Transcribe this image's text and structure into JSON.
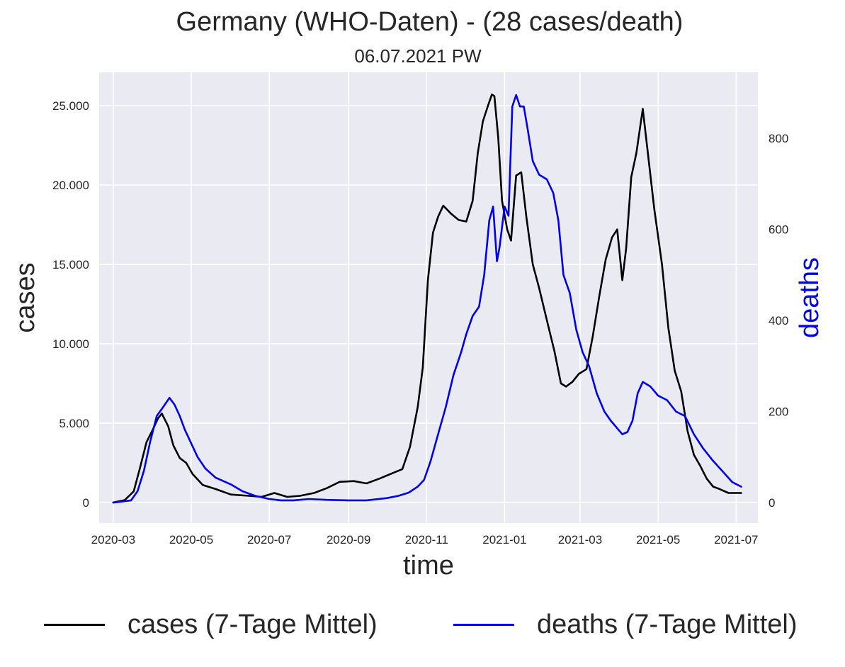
{
  "chart_data": {
    "type": "line",
    "title": "Germany (WHO-Daten) - (28 cases/death)",
    "subtitle": "06.07.2021 PW",
    "xlabel": "time",
    "ylabel_left": "cases",
    "ylabel_right": "deaths",
    "x_tick_labels": [
      "2020-03",
      "2020-05",
      "2020-07",
      "2020-09",
      "2020-11",
      "2021-01",
      "2021-03",
      "2021-05",
      "2021-07"
    ],
    "y_left_tick_labels": [
      "0",
      "5.000",
      "10.000",
      "15.000",
      "20.000",
      "25.000"
    ],
    "y_left_ticks": [
      0,
      5000,
      10000,
      15000,
      20000,
      25000
    ],
    "y_right_tick_labels": [
      "0",
      "200",
      "400",
      "600",
      "800"
    ],
    "y_right_ticks": [
      0,
      200,
      400,
      600,
      800
    ],
    "x_range": [
      "2020-02-19",
      "2021-07-18"
    ],
    "y_left_range": [
      -1300,
      27100
    ],
    "y_right_range": [
      -45,
      945
    ],
    "grid": true,
    "legend_placement": "bottom",
    "series": [
      {
        "name": "cases (7-Tage Mittel)",
        "axis": "left",
        "color": "#000000",
        "x": [
          "2020-03-01",
          "2020-03-10",
          "2020-03-17",
          "2020-03-22",
          "2020-03-27",
          "2020-04-01",
          "2020-04-05",
          "2020-04-08",
          "2020-04-13",
          "2020-04-17",
          "2020-04-22",
          "2020-04-27",
          "2020-05-02",
          "2020-05-10",
          "2020-05-20",
          "2020-06-01",
          "2020-06-15",
          "2020-06-25",
          "2020-07-05",
          "2020-07-15",
          "2020-07-25",
          "2020-08-05",
          "2020-08-15",
          "2020-08-25",
          "2020-09-05",
          "2020-09-15",
          "2020-09-25",
          "2020-10-01",
          "2020-10-07",
          "2020-10-13",
          "2020-10-19",
          "2020-10-25",
          "2020-10-29",
          "2020-11-02",
          "2020-11-06",
          "2020-11-10",
          "2020-11-14",
          "2020-11-20",
          "2020-11-26",
          "2020-12-02",
          "2020-12-07",
          "2020-12-11",
          "2020-12-15",
          "2020-12-19",
          "2020-12-22",
          "2020-12-24",
          "2020-12-27",
          "2020-12-30",
          "2021-01-03",
          "2021-01-06",
          "2021-01-10",
          "2021-01-14",
          "2021-01-18",
          "2021-01-23",
          "2021-01-28",
          "2021-02-03",
          "2021-02-09",
          "2021-02-14",
          "2021-02-18",
          "2021-02-23",
          "2021-02-28",
          "2021-03-06",
          "2021-03-11",
          "2021-03-16",
          "2021-03-21",
          "2021-03-26",
          "2021-03-30",
          "2021-04-03",
          "2021-04-06",
          "2021-04-10",
          "2021-04-14",
          "2021-04-19",
          "2021-04-23",
          "2021-04-28",
          "2021-05-04",
          "2021-05-09",
          "2021-05-14",
          "2021-05-19",
          "2021-05-24",
          "2021-05-29",
          "2021-06-03",
          "2021-06-08",
          "2021-06-13",
          "2021-06-18",
          "2021-06-25",
          "2021-07-05"
        ],
        "values": [
          0,
          150,
          700,
          2200,
          3800,
          4600,
          5300,
          5600,
          4800,
          3600,
          2800,
          2500,
          1800,
          1100,
          850,
          500,
          420,
          350,
          600,
          350,
          420,
          600,
          900,
          1300,
          1350,
          1200,
          1500,
          1700,
          1900,
          2100,
          3500,
          6000,
          8500,
          14000,
          17000,
          18000,
          18700,
          18200,
          17800,
          17700,
          19000,
          22000,
          24000,
          25000,
          25700,
          25600,
          23000,
          19000,
          17200,
          16500,
          20600,
          20800,
          18000,
          15000,
          13500,
          11500,
          9500,
          7500,
          7300,
          7600,
          8100,
          8400,
          10500,
          13000,
          15300,
          16700,
          17200,
          14000,
          16000,
          20500,
          22000,
          24800,
          22000,
          18500,
          15000,
          11000,
          8300,
          7000,
          4500,
          3000,
          2300,
          1500,
          1000,
          850,
          600,
          600
        ]
      },
      {
        "name": "deaths (7-Tage Mittel)",
        "axis": "right",
        "color": "#0000ee",
        "x": [
          "2020-03-01",
          "2020-03-15",
          "2020-03-20",
          "2020-03-25",
          "2020-03-30",
          "2020-04-04",
          "2020-04-09",
          "2020-04-14",
          "2020-04-18",
          "2020-04-22",
          "2020-04-26",
          "2020-05-01",
          "2020-05-06",
          "2020-05-12",
          "2020-05-20",
          "2020-06-01",
          "2020-06-10",
          "2020-06-20",
          "2020-07-01",
          "2020-07-10",
          "2020-07-20",
          "2020-08-01",
          "2020-08-15",
          "2020-09-01",
          "2020-09-15",
          "2020-10-01",
          "2020-10-10",
          "2020-10-18",
          "2020-10-25",
          "2020-10-30",
          "2020-11-04",
          "2020-11-10",
          "2020-11-16",
          "2020-11-22",
          "2020-11-28",
          "2020-12-02",
          "2020-12-07",
          "2020-12-12",
          "2020-12-16",
          "2020-12-20",
          "2020-12-23",
          "2020-12-26",
          "2020-12-28",
          "2021-01-01",
          "2021-01-04",
          "2021-01-07",
          "2021-01-10",
          "2021-01-13",
          "2021-01-16",
          "2021-01-19",
          "2021-01-23",
          "2021-01-28",
          "2021-02-03",
          "2021-02-08",
          "2021-02-12",
          "2021-02-16",
          "2021-02-21",
          "2021-02-26",
          "2021-03-03",
          "2021-03-08",
          "2021-03-14",
          "2021-03-20",
          "2021-03-25",
          "2021-03-31",
          "2021-04-03",
          "2021-04-07",
          "2021-04-11",
          "2021-04-15",
          "2021-04-19",
          "2021-04-25",
          "2021-05-01",
          "2021-05-08",
          "2021-05-15",
          "2021-05-22",
          "2021-05-29",
          "2021-06-05",
          "2021-06-12",
          "2021-06-20",
          "2021-06-28",
          "2021-07-05"
        ],
        "values": [
          0,
          5,
          25,
          70,
          135,
          190,
          210,
          230,
          215,
          190,
          160,
          130,
          100,
          75,
          55,
          40,
          25,
          15,
          8,
          5,
          5,
          8,
          6,
          5,
          5,
          10,
          15,
          22,
          35,
          50,
          90,
          150,
          210,
          280,
          330,
          370,
          410,
          430,
          500,
          620,
          650,
          530,
          560,
          650,
          630,
          870,
          895,
          870,
          870,
          820,
          750,
          720,
          710,
          680,
          620,
          500,
          460,
          380,
          330,
          300,
          240,
          200,
          180,
          160,
          150,
          155,
          180,
          240,
          265,
          255,
          235,
          225,
          200,
          190,
          150,
          120,
          95,
          70,
          45,
          35
        ]
      }
    ]
  }
}
